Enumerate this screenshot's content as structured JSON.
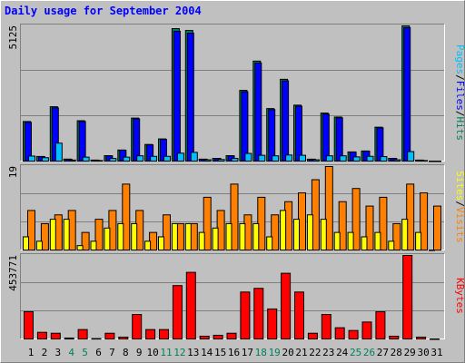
{
  "chart_data": [
    {
      "type": "bar",
      "title": "Daily usage for September 2004",
      "ylim": [
        0,
        5125
      ],
      "yticks": [
        5125
      ],
      "separator": "/",
      "series": [
        {
          "name": "Hits",
          "color": "#00805c",
          "values": [
            1500,
            175,
            2060,
            75,
            1530,
            38,
            205,
            420,
            1630,
            630,
            840,
            5020,
            4950,
            72,
            103,
            205,
            2680,
            3790,
            1990,
            3100,
            2120,
            72,
            1820,
            1670,
            348,
            383,
            1285,
            103,
            5125,
            38,
            0
          ]
        },
        {
          "name": "Files",
          "color": "#0000ff",
          "values": [
            1470,
            170,
            2020,
            70,
            1500,
            35,
            200,
            410,
            1600,
            615,
            820,
            4920,
            4850,
            70,
            100,
            200,
            2630,
            3720,
            1950,
            3040,
            2080,
            70,
            1780,
            1640,
            340,
            375,
            1260,
            100,
            5060,
            35,
            0
          ]
        },
        {
          "name": "Pages",
          "color": "#00c0ff",
          "values": [
            190,
            130,
            680,
            40,
            150,
            20,
            100,
            150,
            200,
            180,
            180,
            300,
            330,
            50,
            60,
            100,
            290,
            220,
            200,
            230,
            220,
            50,
            200,
            200,
            160,
            180,
            170,
            50,
            360,
            20,
            0
          ]
        }
      ]
    },
    {
      "type": "bar",
      "ylim": [
        0,
        19
      ],
      "yticks": [
        19
      ],
      "separator": "/",
      "series": [
        {
          "name": "Visits",
          "color": "#ff8000",
          "values": [
            9,
            6,
            8,
            9,
            4,
            7,
            9,
            15,
            9,
            4,
            8,
            6,
            6,
            12,
            9,
            15,
            8,
            12,
            8,
            11,
            13,
            16,
            19,
            11,
            14,
            10,
            12,
            6,
            15,
            13,
            10
          ]
        },
        {
          "name": "Sites",
          "color": "#ffff00",
          "values": [
            3,
            2,
            7,
            7,
            1,
            2,
            5,
            6,
            6,
            2,
            3,
            6,
            6,
            4,
            5,
            6,
            6,
            6,
            3,
            9,
            7,
            8,
            7,
            4,
            4,
            3,
            4,
            2,
            7,
            4,
            0
          ]
        }
      ]
    },
    {
      "type": "bar",
      "ylim": [
        0,
        453771
      ],
      "yticks": [
        453771
      ],
      "categories": [
        "1",
        "2",
        "3",
        "4",
        "5",
        "6",
        "7",
        "8",
        "9",
        "10",
        "11",
        "12",
        "13",
        "14",
        "15",
        "16",
        "17",
        "18",
        "19",
        "20",
        "21",
        "22",
        "23",
        "24",
        "25",
        "26",
        "27",
        "28",
        "29",
        "30",
        "31"
      ],
      "category_colors": [
        "#000000",
        "#000000",
        "#000000",
        "#00805c",
        "#00805c",
        "#000000",
        "#000000",
        "#000000",
        "#000000",
        "#000000",
        "#00805c",
        "#00805c",
        "#000000",
        "#000000",
        "#000000",
        "#000000",
        "#000000",
        "#00805c",
        "#00805c",
        "#000000",
        "#000000",
        "#000000",
        "#000000",
        "#000000",
        "#00805c",
        "#00805c",
        "#000000",
        "#000000",
        "#000000",
        "#000000",
        "#000000"
      ],
      "series": [
        {
          "name": "KBytes",
          "color": "#ff0000",
          "values": [
            148000,
            36000,
            31000,
            5000,
            51000,
            2000,
            31000,
            10000,
            133000,
            51000,
            51000,
            290000,
            362000,
            15000,
            20000,
            31000,
            255000,
            275000,
            163000,
            357000,
            255000,
            31000,
            133000,
            61000,
            46000,
            92000,
            148000,
            15000,
            453771,
            10000,
            0
          ]
        }
      ]
    }
  ]
}
